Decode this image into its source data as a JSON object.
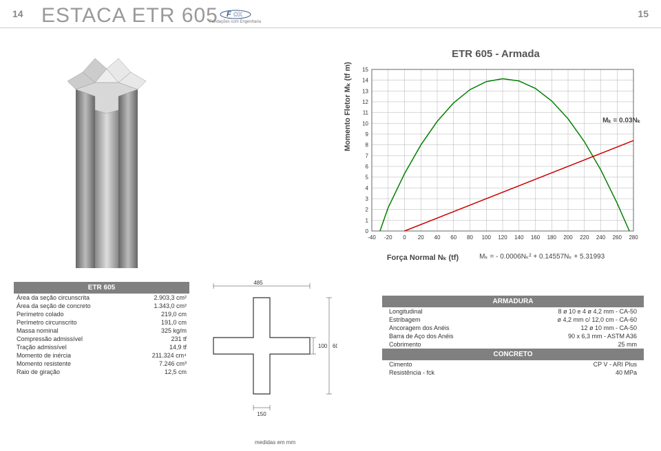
{
  "page": {
    "left_num": "14",
    "right_num": "15",
    "title": "ESTACA ETR 605",
    "logo_sub": "Fundações com Engenharia",
    "medidas": "medidas em mm"
  },
  "spec": {
    "header": "ETR 605",
    "rows": [
      {
        "prop": "Área da seção circunscrita",
        "val": "2.903,3 cm²"
      },
      {
        "prop": "Área da seção de concreto",
        "val": "1.343,0 cm²"
      },
      {
        "prop": "Perímetro colado",
        "val": "219,0 cm"
      },
      {
        "prop": "Perímetro circunscrito",
        "val": "191,0 cm"
      },
      {
        "prop": "Massa nominal",
        "val": "325 kg/m"
      },
      {
        "prop": "Compressão admissível",
        "val": "231 tf"
      },
      {
        "prop": "Tração admissível",
        "val": "14,9 tf"
      },
      {
        "prop": "Momento de inércia",
        "val": "211.324 cm⁴"
      },
      {
        "prop": "Momento resistente",
        "val": "7.246 cm³"
      },
      {
        "prop": "Raio de giração",
        "val": "12,5 cm"
      }
    ]
  },
  "xsection": {
    "dim_top": "485",
    "dim_side": "100",
    "dim_height": "600",
    "dim_arm": "150"
  },
  "chart": {
    "title": "ETR 605 - Armada",
    "ylabel": "Momento Fletor Mₖ (tf m)",
    "xlabel": "Força Normal Nₖ (tf)",
    "formula": "Mₖ = - 0.0006Nₖ² + 0.14557Nₖ + 5.31993",
    "m_annot": "Mₖ = 0.03Nₖ",
    "xmin": -40,
    "xmax": 280,
    "xstep": 20,
    "ymin": 0,
    "ymax": 15,
    "ystep": 1,
    "grid_color": "#b0b0b0",
    "axis_color": "#666",
    "parabola_color": "#008000",
    "line_color": "#cc0000",
    "parabola_points": [
      [
        -30,
        0
      ],
      [
        -20,
        2.17
      ],
      [
        0,
        5.32
      ],
      [
        20,
        7.99
      ],
      [
        40,
        10.18
      ],
      [
        60,
        11.89
      ],
      [
        80,
        13.12
      ],
      [
        100,
        13.87
      ],
      [
        120,
        14.14
      ],
      [
        140,
        13.93
      ],
      [
        160,
        13.24
      ],
      [
        180,
        12.07
      ],
      [
        200,
        10.42
      ],
      [
        220,
        8.29
      ],
      [
        240,
        5.68
      ],
      [
        260,
        2.59
      ],
      [
        275,
        0
      ]
    ],
    "line_points": [
      [
        -40,
        -1.2
      ],
      [
        280,
        8.4
      ]
    ]
  },
  "armadura": {
    "header1": "ARMADURA",
    "rows1": [
      {
        "prop": "Longitudinal",
        "val": "8 ø 10 e 4 ø 4,2 mm - CA-50"
      },
      {
        "prop": "Estribagem",
        "val": "ø 4,2 mm c/ 12,0 cm - CA-60"
      },
      {
        "prop": "Ancoragem dos Anéis",
        "val": "12 ø 10 mm - CA-50"
      },
      {
        "prop": "Barra de Aço dos Anéis",
        "val": "90 x 6,3 mm - ASTM A36"
      },
      {
        "prop": "Cobrimento",
        "val": "25 mm"
      }
    ],
    "header2": "CONCRETO",
    "rows2": [
      {
        "prop": "Cimento",
        "val": "CP V - ARI Plus"
      },
      {
        "prop": "Resistência - fck",
        "val": "40 MPa"
      }
    ]
  }
}
